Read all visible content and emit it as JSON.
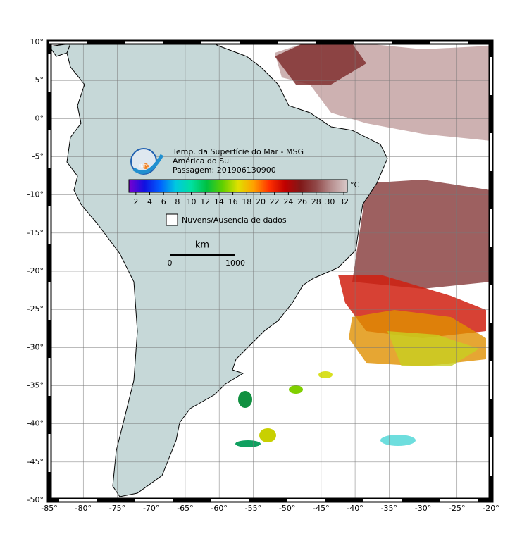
{
  "map": {
    "title": [
      "Temp. da Superfície do Mar - MSG",
      "América do Sul",
      "Passagem: 201906130900"
    ],
    "logo": "INPE",
    "colorbar": {
      "unit": "°C",
      "range": [
        1,
        32.5
      ],
      "ticks": [
        2,
        4,
        6,
        8,
        10,
        12,
        14,
        16,
        18,
        20,
        22,
        24,
        26,
        28,
        30,
        32
      ],
      "colors": [
        "#7a00d0",
        "#1010e0",
        "#0060ff",
        "#00c8e0",
        "#00e0a0",
        "#00c040",
        "#60d000",
        "#e0e000",
        "#ffa000",
        "#ff3000",
        "#c00000",
        "#801818",
        "#904848",
        "#b89090",
        "#d8c8c8"
      ]
    },
    "legend": "Nuvens/Ausencia de dados",
    "scale": {
      "unit": "km",
      "labels": [
        "0",
        "1000"
      ]
    },
    "lon_ticks": [
      {
        "value": -85,
        "label": "-85°"
      },
      {
        "value": -80,
        "label": "-80°"
      },
      {
        "value": -75,
        "label": "-75°"
      },
      {
        "value": -70,
        "label": "-70°"
      },
      {
        "value": -65,
        "label": "-65°"
      },
      {
        "value": -60,
        "label": "-60°"
      },
      {
        "value": -55,
        "label": "-55°"
      },
      {
        "value": -50,
        "label": "-50°"
      },
      {
        "value": -45,
        "label": "-45°"
      },
      {
        "value": -40,
        "label": "-40°"
      },
      {
        "value": -35,
        "label": "-35°"
      },
      {
        "value": -30,
        "label": "-30°"
      },
      {
        "value": -25,
        "label": "-25°"
      },
      {
        "value": -20,
        "label": "-20°"
      }
    ],
    "lat_ticks": [
      {
        "value": 10,
        "label": "10°"
      },
      {
        "value": 5,
        "label": "5°"
      },
      {
        "value": 0,
        "label": "0°"
      },
      {
        "value": -5,
        "label": "-5°"
      },
      {
        "value": -10,
        "label": "-10°"
      },
      {
        "value": -15,
        "label": "-15°"
      },
      {
        "value": -20,
        "label": "-20°"
      },
      {
        "value": -25,
        "label": "-25°"
      },
      {
        "value": -30,
        "label": "-30°"
      },
      {
        "value": -35,
        "label": "-35°"
      },
      {
        "value": -40,
        "label": "-40°"
      },
      {
        "value": -45,
        "label": "-45°"
      },
      {
        "value": -50,
        "label": "-50°"
      }
    ]
  }
}
